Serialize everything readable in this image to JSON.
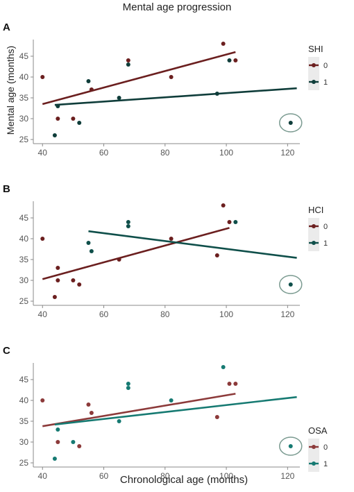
{
  "figure": {
    "title": "Mental age progression",
    "xlabel": "Chronological age (months)",
    "ylabel": "Mental age (months)"
  },
  "chart_data": [
    {
      "panel_label": "A",
      "type": "scatter",
      "xlim": [
        37,
        124
      ],
      "ylim": [
        24,
        49
      ],
      "x_ticks": [
        40,
        60,
        80,
        100,
        120
      ],
      "y_ticks": [
        25,
        30,
        35,
        40,
        45
      ],
      "legend": {
        "title": "SHI",
        "position": "right"
      },
      "series": [
        {
          "name": "0",
          "color": "#6b1f1f",
          "points": [
            [
              40,
              40
            ],
            [
              45,
              30
            ],
            [
              50,
              30
            ],
            [
              56,
              37
            ],
            [
              68,
              44
            ],
            [
              82,
              40
            ],
            [
              99,
              48
            ],
            [
              103,
              44
            ]
          ],
          "trend": [
            [
              40,
              33.5
            ],
            [
              103,
              46
            ]
          ]
        },
        {
          "name": "1",
          "color": "#0f3d3a",
          "points": [
            [
              44,
              26
            ],
            [
              45,
              33
            ],
            [
              52,
              29
            ],
            [
              55,
              39
            ],
            [
              65,
              35
            ],
            [
              68,
              43
            ],
            [
              97,
              36
            ],
            [
              101,
              44
            ],
            [
              121,
              29
            ]
          ],
          "trend": [
            [
              44,
              33.3
            ],
            [
              123,
              37.3
            ]
          ]
        }
      ],
      "highlight": {
        "x": 121,
        "y": 29
      }
    },
    {
      "panel_label": "B",
      "type": "scatter",
      "xlim": [
        37,
        124
      ],
      "ylim": [
        24,
        49
      ],
      "x_ticks": [
        40,
        60,
        80,
        100,
        120
      ],
      "y_ticks": [
        25,
        30,
        35,
        40,
        45
      ],
      "legend": {
        "title": "HCI",
        "position": "right"
      },
      "series": [
        {
          "name": "0",
          "color": "#6b1f1f",
          "points": [
            [
              40,
              40
            ],
            [
              44,
              26
            ],
            [
              45,
              33
            ],
            [
              45,
              30
            ],
            [
              50,
              30
            ],
            [
              52,
              29
            ],
            [
              65,
              35
            ],
            [
              82,
              40
            ],
            [
              97,
              36
            ],
            [
              99,
              48
            ],
            [
              101,
              44
            ]
          ],
          "trend": [
            [
              40,
              30.3
            ],
            [
              101,
              42.6
            ]
          ]
        },
        {
          "name": "1",
          "color": "#0f4f4a",
          "points": [
            [
              55,
              39
            ],
            [
              56,
              37
            ],
            [
              68,
              44
            ],
            [
              68,
              43
            ],
            [
              103,
              44
            ],
            [
              121,
              29
            ]
          ],
          "trend": [
            [
              55,
              41.8
            ],
            [
              123,
              35.4
            ]
          ]
        }
      ],
      "highlight": {
        "x": 121,
        "y": 29
      }
    },
    {
      "panel_label": "C",
      "type": "scatter",
      "xlim": [
        37,
        124
      ],
      "ylim": [
        24,
        49
      ],
      "x_ticks": [
        40,
        60,
        80,
        100,
        120
      ],
      "y_ticks": [
        25,
        30,
        35,
        40,
        45
      ],
      "legend": {
        "title": "OSA",
        "position": "right"
      },
      "series": [
        {
          "name": "0",
          "color": "#8c3a3a",
          "points": [
            [
              40,
              40
            ],
            [
              45,
              30
            ],
            [
              52,
              29
            ],
            [
              55,
              39
            ],
            [
              56,
              37
            ],
            [
              97,
              36
            ],
            [
              101,
              44
            ],
            [
              103,
              44
            ]
          ],
          "trend": [
            [
              40,
              33.8
            ],
            [
              103,
              41.6
            ]
          ]
        },
        {
          "name": "1",
          "color": "#167a72",
          "points": [
            [
              44,
              26
            ],
            [
              45,
              33
            ],
            [
              50,
              30
            ],
            [
              65,
              35
            ],
            [
              68,
              44
            ],
            [
              68,
              43
            ],
            [
              82,
              40
            ],
            [
              99,
              48
            ],
            [
              121,
              29
            ]
          ],
          "trend": [
            [
              44,
              34.2
            ],
            [
              123,
              40.8
            ]
          ]
        }
      ],
      "highlight": {
        "x": 121,
        "y": 29
      }
    }
  ]
}
